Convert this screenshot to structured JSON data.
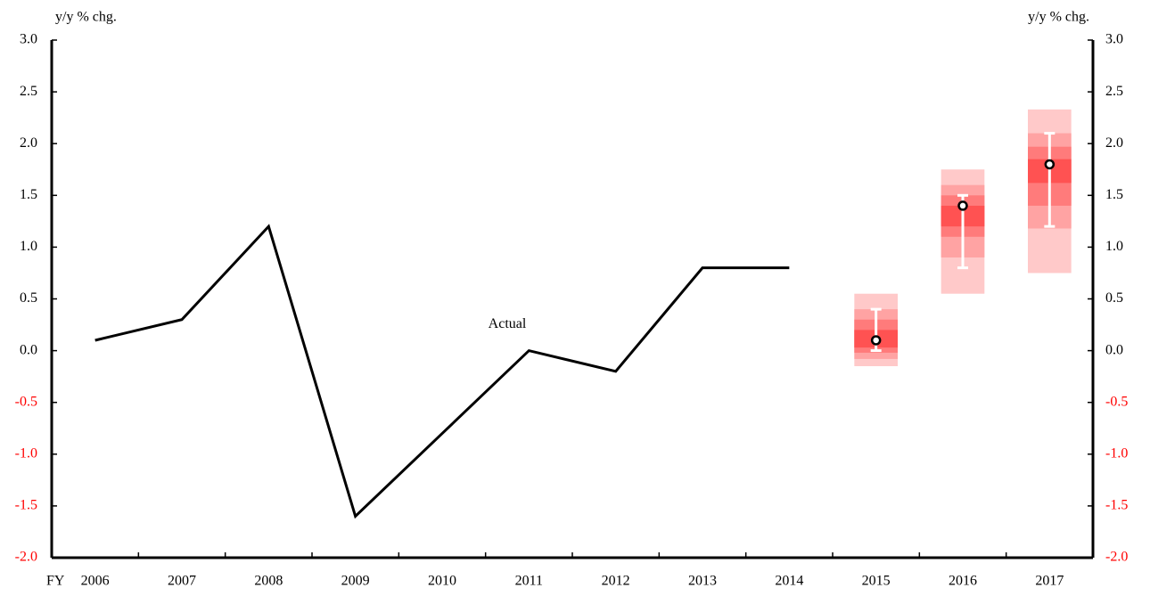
{
  "chart_data": {
    "type": "line",
    "y_label": "y/y % chg.",
    "y2_label": "y/y % chg.",
    "x_prefix": "FY",
    "categories": [
      "2006",
      "2007",
      "2008",
      "2009",
      "2010",
      "2011",
      "2012",
      "2013",
      "2014",
      "2015",
      "2016",
      "2017"
    ],
    "series": [
      {
        "name": "Actual",
        "color": "#000000",
        "values": [
          0.1,
          0.3,
          1.2,
          -1.6,
          -0.8,
          0.0,
          -0.2,
          0.8,
          0.8,
          null,
          null,
          null
        ]
      }
    ],
    "forecast": {
      "median": [
        null,
        null,
        null,
        null,
        null,
        null,
        null,
        null,
        null,
        0.1,
        1.4,
        1.8
      ],
      "range_low": [
        null,
        null,
        null,
        null,
        null,
        null,
        null,
        null,
        null,
        0.0,
        0.8,
        1.2
      ],
      "range_high": [
        null,
        null,
        null,
        null,
        null,
        null,
        null,
        null,
        null,
        0.4,
        1.5,
        2.1
      ],
      "bands": [
        {
          "color": "#ffc9c9",
          "low": [
            null,
            null,
            null,
            null,
            null,
            null,
            null,
            null,
            null,
            -0.15,
            0.55,
            0.75
          ],
          "high": [
            null,
            null,
            null,
            null,
            null,
            null,
            null,
            null,
            null,
            0.55,
            1.75,
            2.33
          ]
        },
        {
          "color": "#ffa3a3",
          "low": [
            null,
            null,
            null,
            null,
            null,
            null,
            null,
            null,
            null,
            -0.08,
            0.9,
            1.18
          ],
          "high": [
            null,
            null,
            null,
            null,
            null,
            null,
            null,
            null,
            null,
            0.4,
            1.6,
            2.1
          ]
        },
        {
          "color": "#ff7b7b",
          "low": [
            null,
            null,
            null,
            null,
            null,
            null,
            null,
            null,
            null,
            -0.02,
            1.1,
            1.4
          ],
          "high": [
            null,
            null,
            null,
            null,
            null,
            null,
            null,
            null,
            null,
            0.3,
            1.5,
            1.97
          ]
        },
        {
          "color": "#ff5252",
          "low": [
            null,
            null,
            null,
            null,
            null,
            null,
            null,
            null,
            null,
            0.03,
            1.2,
            1.62
          ],
          "high": [
            null,
            null,
            null,
            null,
            null,
            null,
            null,
            null,
            null,
            0.2,
            1.4,
            1.85
          ]
        }
      ]
    },
    "ylim": [
      -2,
      3
    ],
    "yticks": [
      {
        "value": -2,
        "label": "-2.0"
      },
      {
        "value": -1.5,
        "label": "-1.5"
      },
      {
        "value": -1,
        "label": "-1.0"
      },
      {
        "value": -0.5,
        "label": "-0.5"
      },
      {
        "value": 0,
        "label": "0.0"
      },
      {
        "value": 0.5,
        "label": "0.5"
      },
      {
        "value": 1,
        "label": "1.0"
      },
      {
        "value": 1.5,
        "label": "1.5"
      },
      {
        "value": 2,
        "label": "2.0"
      },
      {
        "value": 2.5,
        "label": "2.5"
      },
      {
        "value": 3,
        "label": "3.0"
      }
    ],
    "y2lim": [
      -2,
      3
    ],
    "y2ticks": [
      {
        "value": -2,
        "label": "-2.0"
      },
      {
        "value": -1.5,
        "label": "-1.5"
      },
      {
        "value": -1,
        "label": "-1.0"
      },
      {
        "value": -0.5,
        "label": "-0.5"
      },
      {
        "value": 0,
        "label": "0.0"
      },
      {
        "value": 0.5,
        "label": "0.5"
      },
      {
        "value": 1,
        "label": "1.0"
      },
      {
        "value": 1.5,
        "label": "1.5"
      },
      {
        "value": 2,
        "label": "2.0"
      },
      {
        "value": 2.5,
        "label": "2.5"
      },
      {
        "value": 3,
        "label": "3.0"
      }
    ],
    "negative_tick_color": "#ff0000",
    "grid": false
  }
}
